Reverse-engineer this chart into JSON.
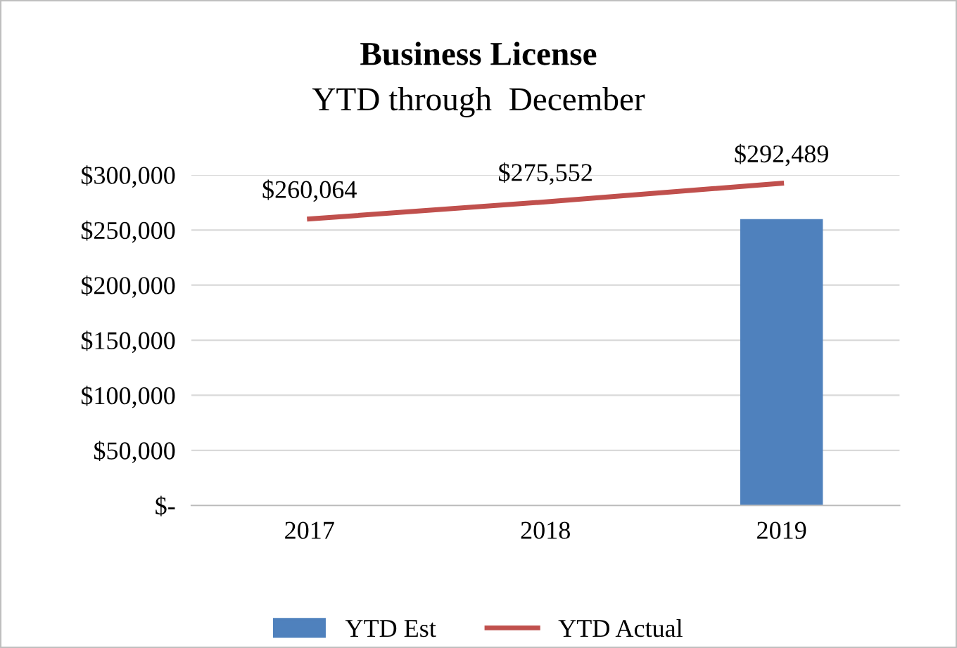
{
  "chart_data": {
    "type": "bar",
    "title": "Business License",
    "subtitle": "YTD through  December",
    "categories": [
      "2017",
      "2018",
      "2019"
    ],
    "series": [
      {
        "name": "YTD Est",
        "color": "#4f81bd",
        "values": [
          null,
          null,
          260000
        ]
      },
      {
        "name": "YTD Actual",
        "type": "line",
        "color": "#c0504d",
        "values": [
          260064,
          275552,
          292489
        ],
        "value_labels": [
          "$260,064",
          "$275,552",
          "$292,489"
        ]
      }
    ],
    "ylim": [
      0,
      300000
    ],
    "yticks": [
      {
        "value": 0,
        "label": "$-"
      },
      {
        "value": 50000,
        "label": "$50,000"
      },
      {
        "value": 100000,
        "label": "$100,000"
      },
      {
        "value": 150000,
        "label": "$150,000"
      },
      {
        "value": 200000,
        "label": "$200,000"
      },
      {
        "value": 250000,
        "label": "$250,000"
      },
      {
        "value": 300000,
        "label": "$300,000"
      }
    ],
    "grid": "y",
    "legend": "bottom",
    "marker": "none",
    "line_style": "solid"
  }
}
